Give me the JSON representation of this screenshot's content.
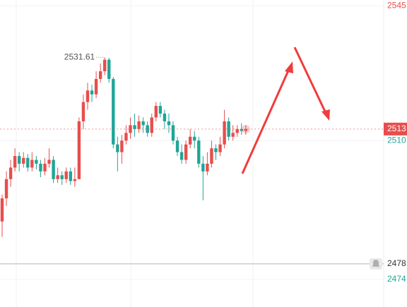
{
  "chart_data": {
    "type": "candlestick",
    "categories": [
      null,
      null,
      null,
      null,
      null,
      null,
      null,
      null,
      null,
      null,
      null,
      null,
      null,
      null,
      null,
      null,
      null,
      null,
      null,
      null,
      null,
      null,
      null,
      null,
      null,
      null,
      null,
      null,
      null,
      null,
      null,
      null,
      null,
      null,
      null,
      null,
      null,
      null,
      null,
      null,
      null,
      null,
      null,
      null,
      null,
      null,
      null,
      null,
      null,
      null,
      null,
      null,
      null,
      null,
      null,
      null,
      null,
      null
    ],
    "open": [
      2489,
      2495,
      2500,
      2503,
      2506,
      2504,
      2505.5,
      2503,
      2505,
      2504,
      2502,
      2504,
      2505,
      2500,
      2501,
      2500,
      2502,
      2499.5,
      2500,
      2515,
      2520,
      2523,
      2522,
      2526,
      2528,
      2531,
      2526,
      2509,
      2507,
      2510,
      2512,
      2514,
      2513,
      2515,
      2514,
      2512,
      2516,
      2519,
      2517,
      2515,
      2514,
      2510,
      2507,
      2505,
      2509,
      2511,
      2510,
      2504,
      2502,
      2504,
      2508,
      2507,
      2509,
      2515,
      2511,
      2512,
      2513,
      2512.5
    ],
    "high": [
      2496,
      2502,
      2505,
      2508,
      2507,
      2507,
      2506.5,
      2507,
      2506,
      2505,
      2505.5,
      2508,
      2506,
      2503,
      2502,
      2503,
      2503,
      2503,
      2516,
      2522,
      2525,
      2524.5,
      2528,
      2530,
      2531.61,
      2531.5,
      2526.5,
      2511,
      2511.5,
      2514,
      2516,
      2517,
      2516.5,
      2516,
      2515,
      2517,
      2520,
      2520,
      2518,
      2517,
      2515,
      2511,
      2509,
      2510,
      2513,
      2512.5,
      2511,
      2506,
      2507,
      2510,
      2509,
      2511,
      2518,
      2516,
      2514,
      2514,
      2514.5,
      2514
    ],
    "low": [
      2485,
      2493,
      2498,
      2502,
      2502,
      2503,
      2502,
      2502,
      2502.5,
      2500.5,
      2501,
      2503,
      2499,
      2499,
      2498.5,
      2499,
      2498.5,
      2498,
      2500,
      2513,
      2518,
      2520,
      2521,
      2525,
      2527,
      2525,
      2508,
      2502,
      2504,
      2509,
      2510.5,
      2511,
      2512,
      2512,
      2511,
      2511,
      2515,
      2516,
      2513,
      2512,
      2509,
      2506,
      2504,
      2504,
      2508,
      2508,
      2503,
      2494.5,
      2501,
      2503,
      2505,
      2506,
      2508,
      2510,
      2510,
      2511,
      2511.5,
      2511.5
    ],
    "close": [
      2495,
      2500,
      2503,
      2506,
      2504,
      2505.5,
      2503,
      2505,
      2504,
      2502,
      2504,
      2505,
      2500,
      2501,
      2500,
      2502,
      2499.5,
      2500,
      2515,
      2520,
      2523,
      2522,
      2526,
      2528,
      2531,
      2526,
      2509,
      2507,
      2510,
      2512,
      2514,
      2513,
      2515,
      2514,
      2512,
      2516,
      2519,
      2517,
      2515,
      2514,
      2510,
      2507,
      2505,
      2509,
      2511,
      2510,
      2504,
      2502,
      2504,
      2508,
      2507,
      2509,
      2515,
      2511,
      2512,
      2513,
      2512.5,
      2513
    ],
    "up_color": "#e84d4d",
    "down_color": "#1fa597",
    "high_label_index": 24,
    "ylim": [
      2466.8,
      2546.5
    ],
    "yticks": [
      2545,
      2510,
      2474
    ],
    "ytick_colors": [
      "#e84d4d",
      "#1fa597",
      "#1fa597"
    ],
    "current_price": 2513,
    "current_color": "#e84d4d",
    "alert_price": 2478
  }
}
